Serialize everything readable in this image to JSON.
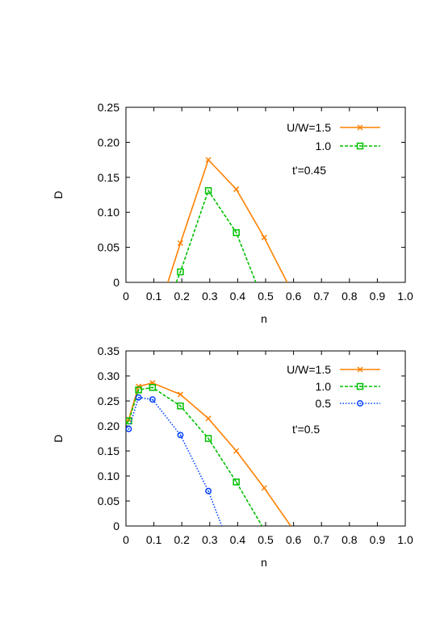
{
  "chart_data": [
    {
      "type": "line",
      "xlabel": "n",
      "ylabel": "D",
      "xlim": [
        0,
        1.0
      ],
      "ylim": [
        0,
        0.25
      ],
      "xticks": [
        "0",
        "0.1",
        "0.2",
        "0.3",
        "0.4",
        "0.5",
        "0.6",
        "0.7",
        "0.8",
        "0.9",
        "1.0"
      ],
      "xtick_values": [
        0,
        0.1,
        0.2,
        0.3,
        0.4,
        0.5,
        0.6,
        0.7,
        0.8,
        0.9,
        1.0
      ],
      "yticks": [
        "0",
        "0.05",
        "0.10",
        "0.15",
        "0.20",
        "0.25"
      ],
      "ytick_values": [
        0,
        0.05,
        0.1,
        0.15,
        0.2,
        0.25
      ],
      "annotation": "t'=0.45",
      "legend_position": "top-right",
      "grid": false,
      "series": [
        {
          "name": "U/W=1.5",
          "color": "#ff8000",
          "marker": "cross",
          "dash": "solid",
          "x": [
            0.15,
            0.195,
            0.295,
            0.395,
            0.495,
            0.577
          ],
          "y": [
            0.0,
            0.056,
            0.175,
            0.133,
            0.064,
            0.0
          ]
        },
        {
          "name": "1.0",
          "color": "#00c000",
          "marker": "square",
          "dash": "dashed",
          "x": [
            0.18,
            0.195,
            0.295,
            0.395,
            0.465
          ],
          "y": [
            0.0,
            0.015,
            0.131,
            0.071,
            0.0
          ]
        }
      ]
    },
    {
      "type": "line",
      "xlabel": "n",
      "ylabel": "D",
      "xlim": [
        0,
        1.0
      ],
      "ylim": [
        0,
        0.35
      ],
      "xticks": [
        "0",
        "0.1",
        "0.2",
        "0.3",
        "0.4",
        "0.5",
        "0.6",
        "0.7",
        "0.8",
        "0.9",
        "1.0"
      ],
      "xtick_values": [
        0,
        0.1,
        0.2,
        0.3,
        0.4,
        0.5,
        0.6,
        0.7,
        0.8,
        0.9,
        1.0
      ],
      "yticks": [
        "0",
        "0.05",
        "0.10",
        "0.15",
        "0.20",
        "0.25",
        "0.30",
        "0.35"
      ],
      "ytick_values": [
        0,
        0.05,
        0.1,
        0.15,
        0.2,
        0.25,
        0.3,
        0.35
      ],
      "annotation": "t'=0.5",
      "legend_position": "top-right",
      "grid": false,
      "series": [
        {
          "name": "U/W=1.5",
          "color": "#ff8000",
          "marker": "cross",
          "dash": "solid",
          "x": [
            0.0,
            0.01,
            0.045,
            0.095,
            0.195,
            0.295,
            0.395,
            0.495,
            0.59
          ],
          "y": [
            0.21,
            0.213,
            0.279,
            0.286,
            0.263,
            0.215,
            0.15,
            0.076,
            0.0
          ]
        },
        {
          "name": "1.0",
          "color": "#00c000",
          "marker": "square",
          "dash": "dashed",
          "x": [
            0.0,
            0.01,
            0.045,
            0.095,
            0.195,
            0.295,
            0.395,
            0.487
          ],
          "y": [
            0.205,
            0.21,
            0.272,
            0.277,
            0.24,
            0.175,
            0.088,
            0.0
          ]
        },
        {
          "name": "0.5",
          "color": "#0040ff",
          "marker": "circle",
          "dash": "dotted",
          "x": [
            0.0,
            0.01,
            0.045,
            0.095,
            0.195,
            0.295,
            0.343
          ],
          "y": [
            0.198,
            0.194,
            0.257,
            0.253,
            0.182,
            0.07,
            0.0
          ]
        }
      ]
    }
  ]
}
